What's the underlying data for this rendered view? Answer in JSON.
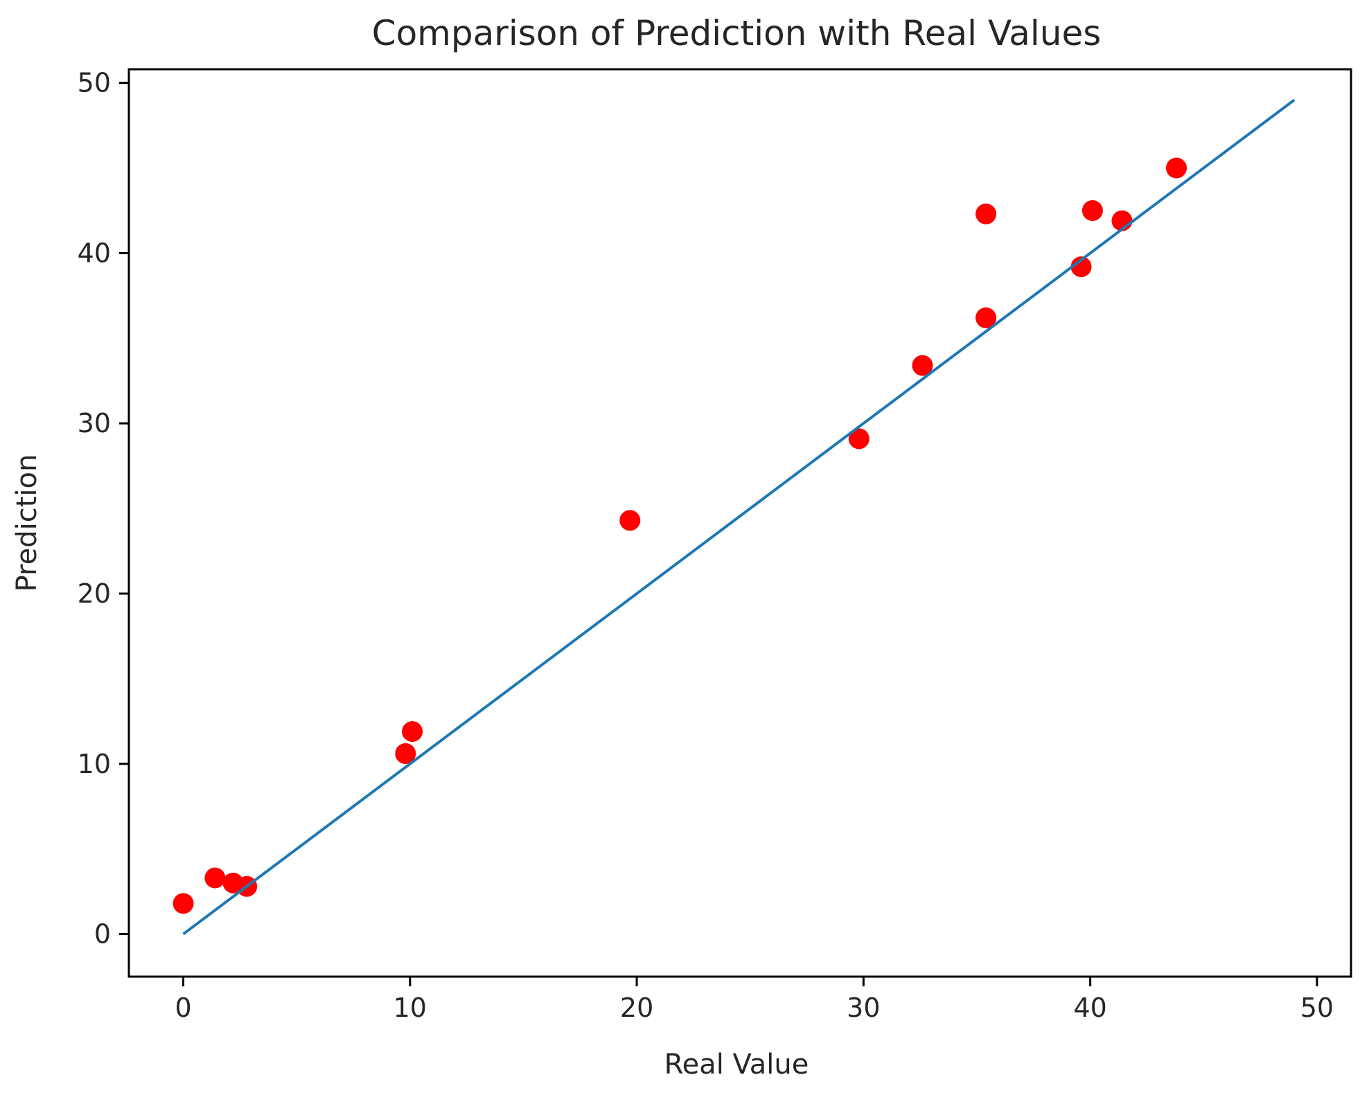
{
  "chart_data": {
    "type": "scatter",
    "title": "Comparison of Prediction with Real Values",
    "xlabel": "Real Value",
    "ylabel": "Prediction",
    "xlim": [
      -2.4,
      51.5
    ],
    "ylim": [
      -2.5,
      50.8
    ],
    "xticks": [
      0,
      10,
      20,
      30,
      40,
      50
    ],
    "yticks": [
      0,
      10,
      20,
      30,
      40,
      50
    ],
    "grid": false,
    "series": [
      {
        "kind": "points",
        "color": "#ff0000",
        "x": [
          0.0,
          1.4,
          2.2,
          2.8,
          9.8,
          10.1,
          19.7,
          29.8,
          32.6,
          35.4,
          35.4,
          39.6,
          40.1,
          41.4,
          43.8
        ],
        "y": [
          1.8,
          3.3,
          3.0,
          2.8,
          10.6,
          11.9,
          24.3,
          29.1,
          33.4,
          36.2,
          42.3,
          39.2,
          42.5,
          41.9,
          45.0
        ]
      },
      {
        "kind": "line",
        "color": "#1f77b4",
        "x": [
          0,
          49
        ],
        "y": [
          0,
          49
        ]
      }
    ]
  }
}
